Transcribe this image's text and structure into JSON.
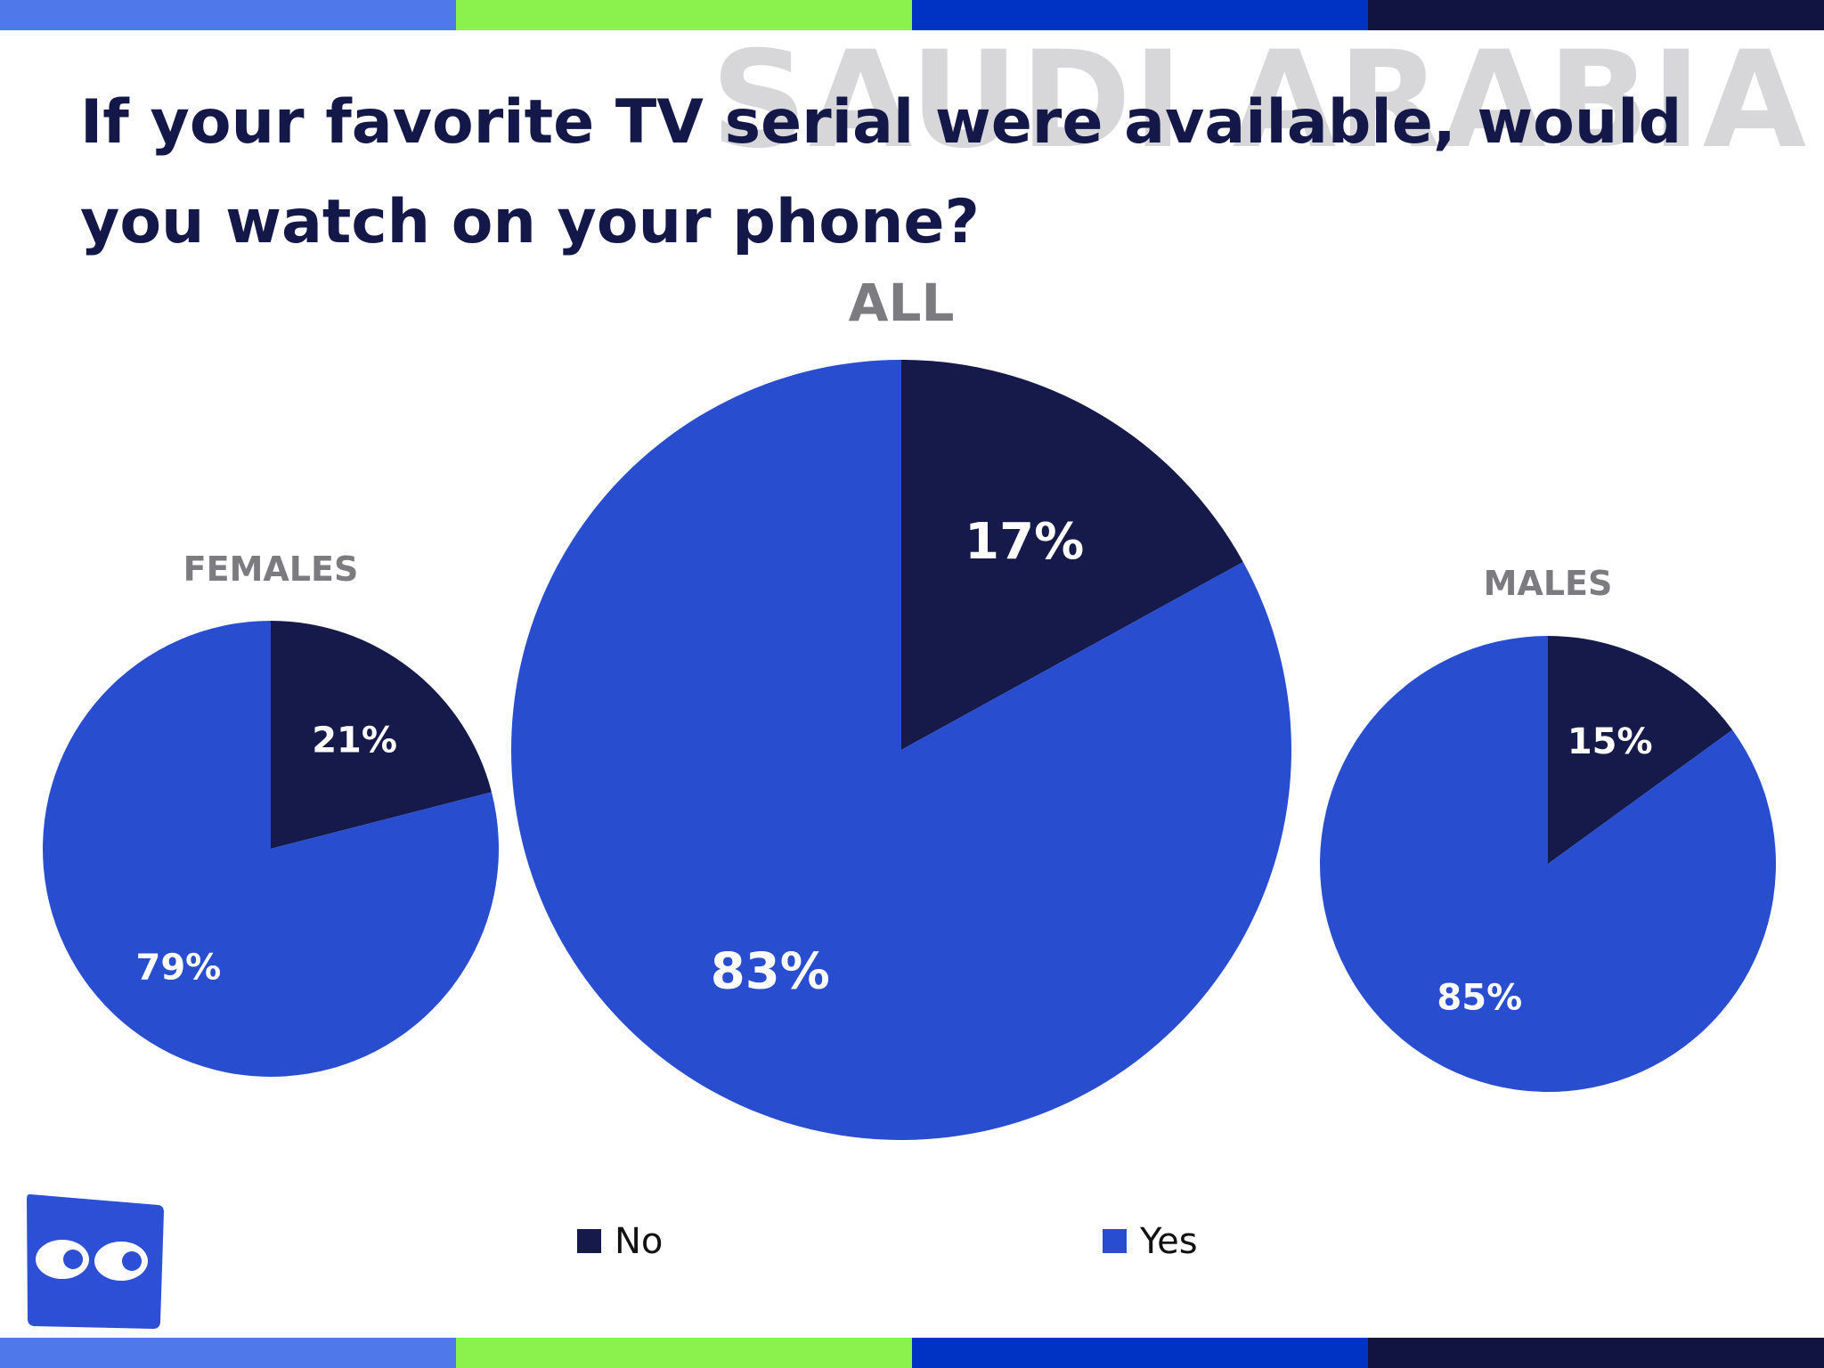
{
  "page": {
    "title": "If your favorite TV serial were available, would you watch on your phone?",
    "watermark": "SAUDI ARABIA",
    "band_colors": [
      "#4f79ea",
      "#8af14d",
      "#0033c4",
      "#111440"
    ],
    "logo_icon": "eyes-logo-icon"
  },
  "chart_data": [
    {
      "type": "pie",
      "title": "FEMALES",
      "categories": [
        "No",
        "Yes"
      ],
      "values": [
        21,
        79
      ],
      "labels": [
        "21%",
        "79%"
      ],
      "colors": [
        "#161a4a",
        "#284ecf"
      ]
    },
    {
      "type": "pie",
      "title": "ALL",
      "categories": [
        "No",
        "Yes"
      ],
      "values": [
        17,
        83
      ],
      "labels": [
        "17%",
        "83%"
      ],
      "colors": [
        "#161a4a",
        "#284ecf"
      ]
    },
    {
      "type": "pie",
      "title": "MALES",
      "categories": [
        "No",
        "Yes"
      ],
      "values": [
        15,
        85
      ],
      "labels": [
        "15%",
        "85%"
      ],
      "colors": [
        "#161a4a",
        "#284ecf"
      ]
    }
  ],
  "legend": {
    "placement": "bottom",
    "items": [
      {
        "label": "No",
        "color": "#161a4a"
      },
      {
        "label": "Yes",
        "color": "#284ecf"
      }
    ]
  }
}
